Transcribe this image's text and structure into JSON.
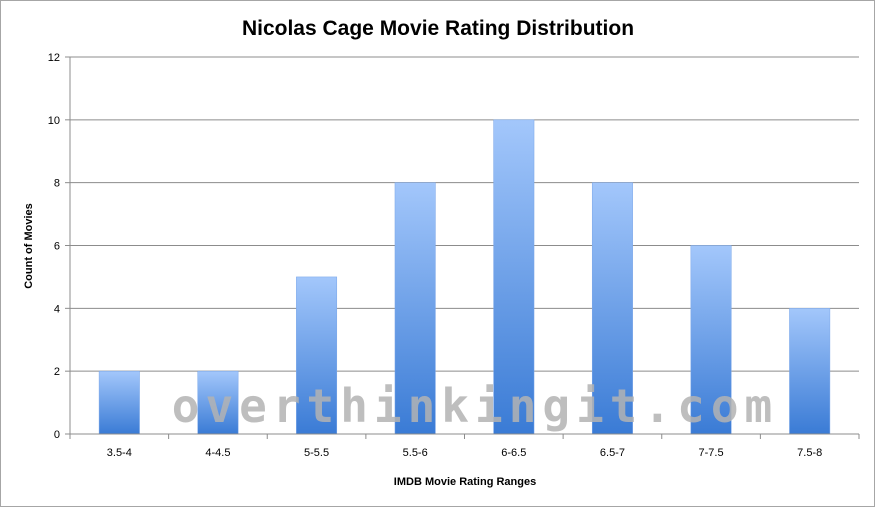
{
  "chart_data": {
    "type": "bar",
    "title": "Nicolas Cage Movie Rating Distribution",
    "xlabel": "IMDB Movie Rating Ranges",
    "ylabel": "Count of Movies",
    "categories": [
      "3.5-4",
      "4-4.5",
      "5-5.5",
      "5.5-6",
      "6-6.5",
      "6.5-7",
      "7-7.5",
      "7.5-8"
    ],
    "values": [
      2,
      2,
      5,
      8,
      10,
      8,
      6,
      4
    ],
    "ylim": [
      0,
      12
    ],
    "yticks": [
      0,
      2,
      4,
      6,
      8,
      10,
      12
    ],
    "grid": true,
    "legend": "none",
    "bar_color_top": "#a3c7fb",
    "bar_color_bottom": "#3a7bd5"
  },
  "watermark": "overthinkingit.com"
}
